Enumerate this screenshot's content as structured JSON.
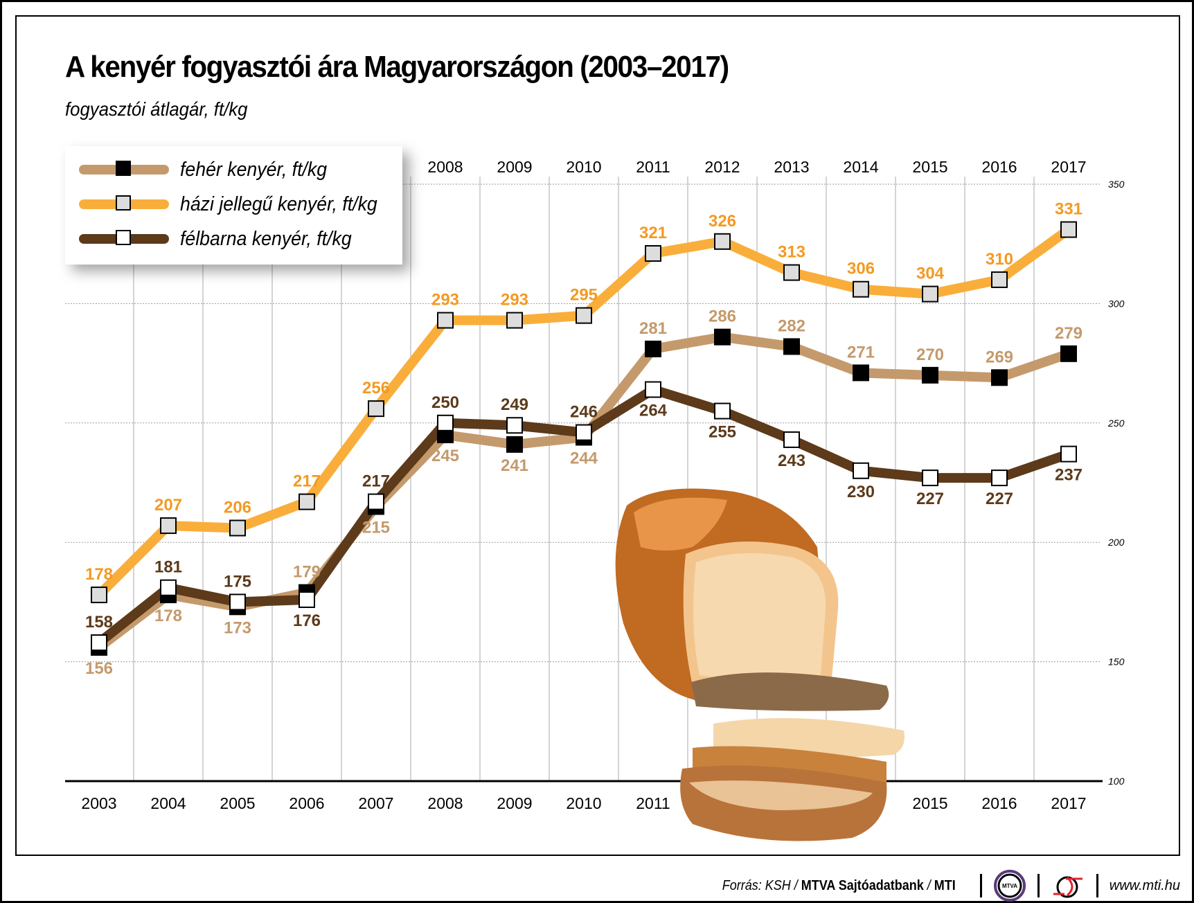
{
  "title": "A kenyér fogyasztói ára Magyarországon (2003–2017)",
  "subtitle": "fogyasztói átlagár, ft/kg",
  "chart_data": {
    "type": "line",
    "x": [
      2003,
      2004,
      2005,
      2006,
      2007,
      2008,
      2009,
      2010,
      2011,
      2012,
      2013,
      2014,
      2015,
      2016,
      2017
    ],
    "top_axis_labels": [
      2008,
      2009,
      2010,
      2011,
      2012,
      2013,
      2014,
      2015,
      2016,
      2017
    ],
    "ylim": [
      100,
      350
    ],
    "yticks": [
      100,
      150,
      200,
      250,
      300,
      350
    ],
    "grid": true,
    "legend_position": "top-left",
    "series": [
      {
        "name": "fehér kenyér, ft/kg",
        "color": "#C49A6C",
        "label_color": "#C49A6C",
        "marker": "black-square",
        "values": [
          156,
          178,
          173,
          179,
          215,
          245,
          241,
          244,
          281,
          286,
          282,
          271,
          270,
          269,
          279
        ]
      },
      {
        "name": "házi jellegű kenyér, ft/kg",
        "color": "#F9AE3B",
        "label_color": "#F39A22",
        "marker": "grey-square",
        "values": [
          178,
          207,
          206,
          217,
          256,
          293,
          293,
          295,
          321,
          326,
          313,
          306,
          304,
          310,
          331
        ]
      },
      {
        "name": "félbarna kenyér, ft/kg",
        "color": "#5C3A1A",
        "label_color": "#5C3A1A",
        "marker": "white-square",
        "values": [
          158,
          181,
          175,
          176,
          217,
          250,
          249,
          246,
          264,
          255,
          243,
          230,
          227,
          227,
          237
        ]
      }
    ]
  },
  "footer": {
    "source_prefix": "Forrás: KSH / ",
    "source_bold": "MTVA Sajtóadatbank",
    "source_sep": " / ",
    "source_mti": "MTI",
    "logo_mtva": "MTVA",
    "website": "www.mti.hu"
  }
}
